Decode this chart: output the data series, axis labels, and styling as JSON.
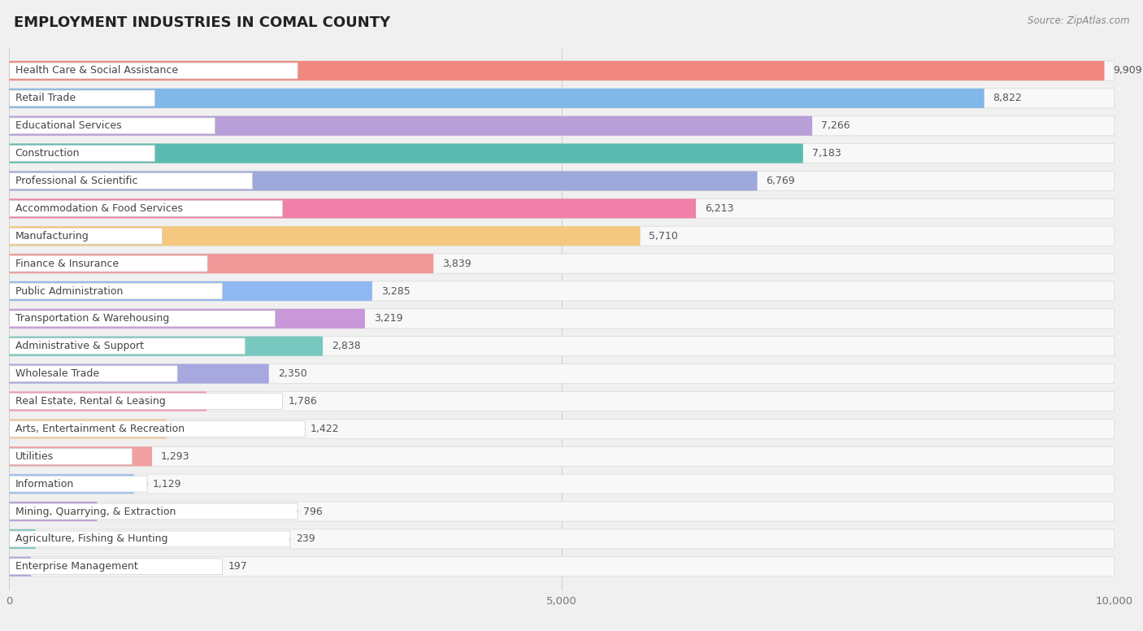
{
  "title": "EMPLOYMENT INDUSTRIES IN COMAL COUNTY",
  "source": "Source: ZipAtlas.com",
  "categories": [
    "Health Care & Social Assistance",
    "Retail Trade",
    "Educational Services",
    "Construction",
    "Professional & Scientific",
    "Accommodation & Food Services",
    "Manufacturing",
    "Finance & Insurance",
    "Public Administration",
    "Transportation & Warehousing",
    "Administrative & Support",
    "Wholesale Trade",
    "Real Estate, Rental & Leasing",
    "Arts, Entertainment & Recreation",
    "Utilities",
    "Information",
    "Mining, Quarrying, & Extraction",
    "Agriculture, Fishing & Hunting",
    "Enterprise Management"
  ],
  "values": [
    9909,
    8822,
    7266,
    7183,
    6769,
    6213,
    5710,
    3839,
    3285,
    3219,
    2838,
    2350,
    1786,
    1422,
    1293,
    1129,
    796,
    239,
    197
  ],
  "bar_colors": [
    "#f08880",
    "#82b8e8",
    "#b89fd8",
    "#5abcb0",
    "#9fa8da",
    "#f080a8",
    "#f5c880",
    "#f09898",
    "#90b8f0",
    "#c898d8",
    "#78c8c0",
    "#a8a8e0",
    "#f898b0",
    "#f8c898",
    "#f0a0a0",
    "#98c0f0",
    "#b8a0d8",
    "#80c8c0",
    "#a8a8d8"
  ],
  "dot_colors": [
    "#e05050",
    "#4080d0",
    "#8060b8",
    "#208888",
    "#5060b0",
    "#e04080",
    "#e09020",
    "#e05050",
    "#4080d0",
    "#9050a8",
    "#208888",
    "#5060b0",
    "#e04080",
    "#e09020",
    "#e05050",
    "#4080d0",
    "#8060b8",
    "#208888",
    "#5060b0"
  ],
  "xlim": [
    0,
    10000
  ],
  "xticks": [
    0,
    5000,
    10000
  ],
  "background_color": "#f0f0f0",
  "row_bg_color": "#ffffff",
  "label_fontsize": 9.0,
  "value_fontsize": 9.0,
  "title_fontsize": 13,
  "bar_height": 0.7
}
